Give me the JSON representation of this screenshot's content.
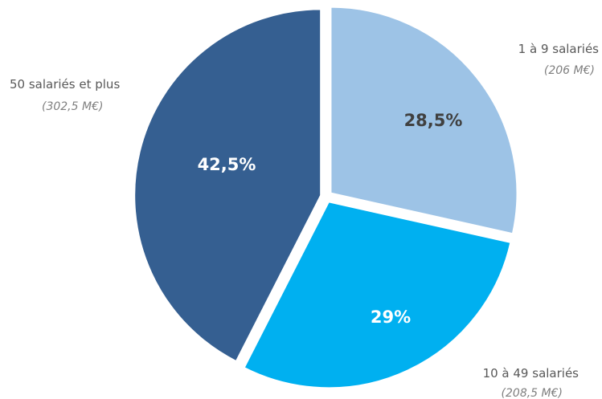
{
  "chart_data": {
    "type": "pie",
    "title": "",
    "slices": [
      {
        "category": "1 à 9 salariés",
        "value_label": "(206 M€)",
        "percent_label": "28,5%",
        "value": 206,
        "percent": 28.5,
        "color": "#9DC3E6",
        "text_color": "#404040"
      },
      {
        "category": "10 à 49 salariés",
        "value_label": "(208,5 M€)",
        "percent_label": "29%",
        "value": 208.5,
        "percent": 29,
        "color": "#00B0F0",
        "text_color": "#ffffff"
      },
      {
        "category": "50 salariés et plus",
        "value_label": "(302,5 M€)",
        "percent_label": "42,5%",
        "value": 302.5,
        "percent": 42.5,
        "color": "#355F91",
        "text_color": "#ffffff"
      }
    ],
    "legend": "none"
  }
}
